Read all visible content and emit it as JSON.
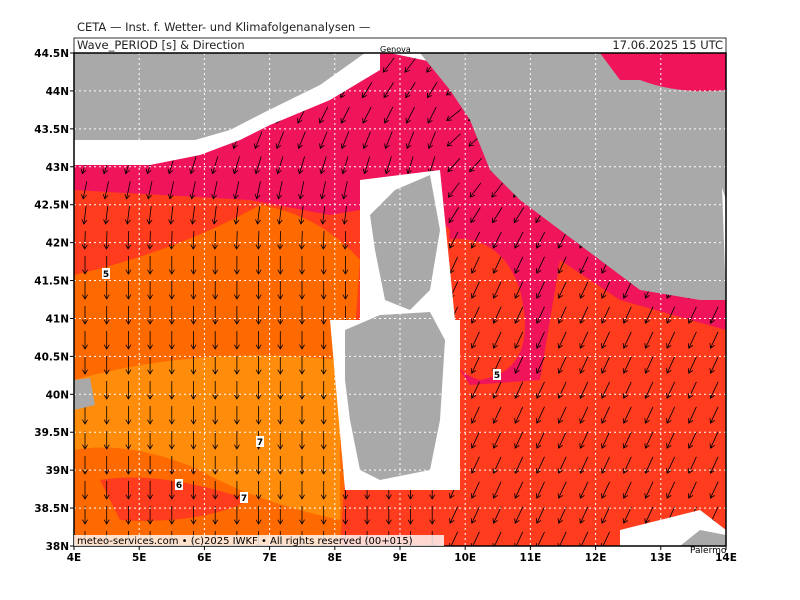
{
  "header": {
    "institute": "CETA — Inst. f. Wetter- und Klimafolgenanalysen —",
    "parameter": "Wave_PERIOD [s] & Direction",
    "date": "17.06.2025 15 UTC"
  },
  "map": {
    "lat_labels": [
      "44.5N",
      "44N",
      "43.5N",
      "43N",
      "42.5N",
      "42N",
      "41.5N",
      "41N",
      "40.5N",
      "40N",
      "39.5N",
      "39N",
      "38.5N",
      "38N"
    ],
    "lon_labels": [
      "4E",
      "5E",
      "6E",
      "7E",
      "8E",
      "9E",
      "10E",
      "11E",
      "12E",
      "13E",
      "14E"
    ],
    "contour_labels": [
      "5",
      "5",
      "7",
      "6",
      "7"
    ],
    "places": [
      "Genova",
      "Palermo"
    ]
  },
  "footer": "meteo-services.com • (c)2025 IWKF • All rights reserved (00+015)"
}
